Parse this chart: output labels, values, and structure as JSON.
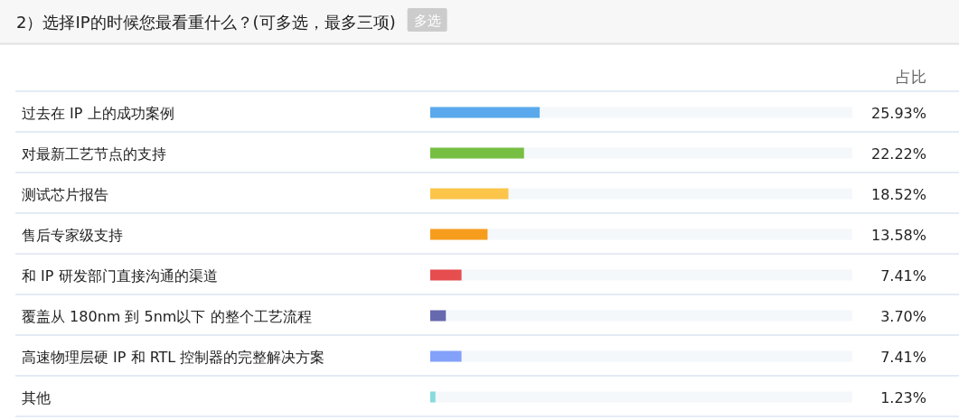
{
  "chart_data": {
    "type": "bar",
    "orientation": "horizontal",
    "title": "2）选择IP的时候您最看重什么？(可多选，最多三项)",
    "subtitle": "多选",
    "xlabel": "占比",
    "categories": [
      "过去在 IP 上的成功案例",
      "对最新工艺节点的支持",
      "测试芯片报告",
      "售后专家级支持",
      "和 IP 研发部门直接沟通的渠道",
      "覆盖从 180nm 到 5nm以下 的整个工艺流程",
      "高速物理层硬 IP 和 RTL 控制器的完整解决方案",
      "其他"
    ],
    "values": [
      25.93,
      22.22,
      18.52,
      13.58,
      7.41,
      3.7,
      7.41,
      1.23
    ],
    "colors": [
      "#59a9ec",
      "#77bf43",
      "#fcc54a",
      "#f79d1e",
      "#e64d4f",
      "#6669ae",
      "#84a1fa",
      "#86dbdc"
    ],
    "xlim": [
      0,
      100
    ],
    "value_labels": [
      "25.93%",
      "22.22%",
      "18.52%",
      "13.58%",
      "7.41%",
      "3.70%",
      "7.41%",
      "1.23%"
    ]
  }
}
